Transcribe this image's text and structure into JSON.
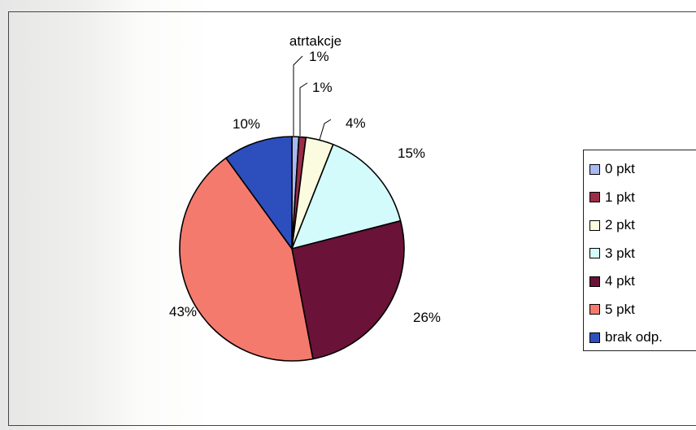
{
  "chart_data": {
    "type": "pie",
    "title": "atrtakcje",
    "categories": [
      "0 pkt",
      "1 pkt",
      "2 pkt",
      "3 pkt",
      "4 pkt",
      "5 pkt",
      "brak odp."
    ],
    "values": [
      1,
      1,
      4,
      15,
      26,
      43,
      10
    ],
    "value_labels": [
      "1%",
      "1%",
      "4%",
      "15%",
      "26%",
      "43%",
      "10%"
    ],
    "colors": [
      "#a7b9f0",
      "#9b2d49",
      "#fbfbe0",
      "#d4fbfb",
      "#6a1238",
      "#f57a6e",
      "#2d4fbd"
    ],
    "legend_position": "right"
  }
}
